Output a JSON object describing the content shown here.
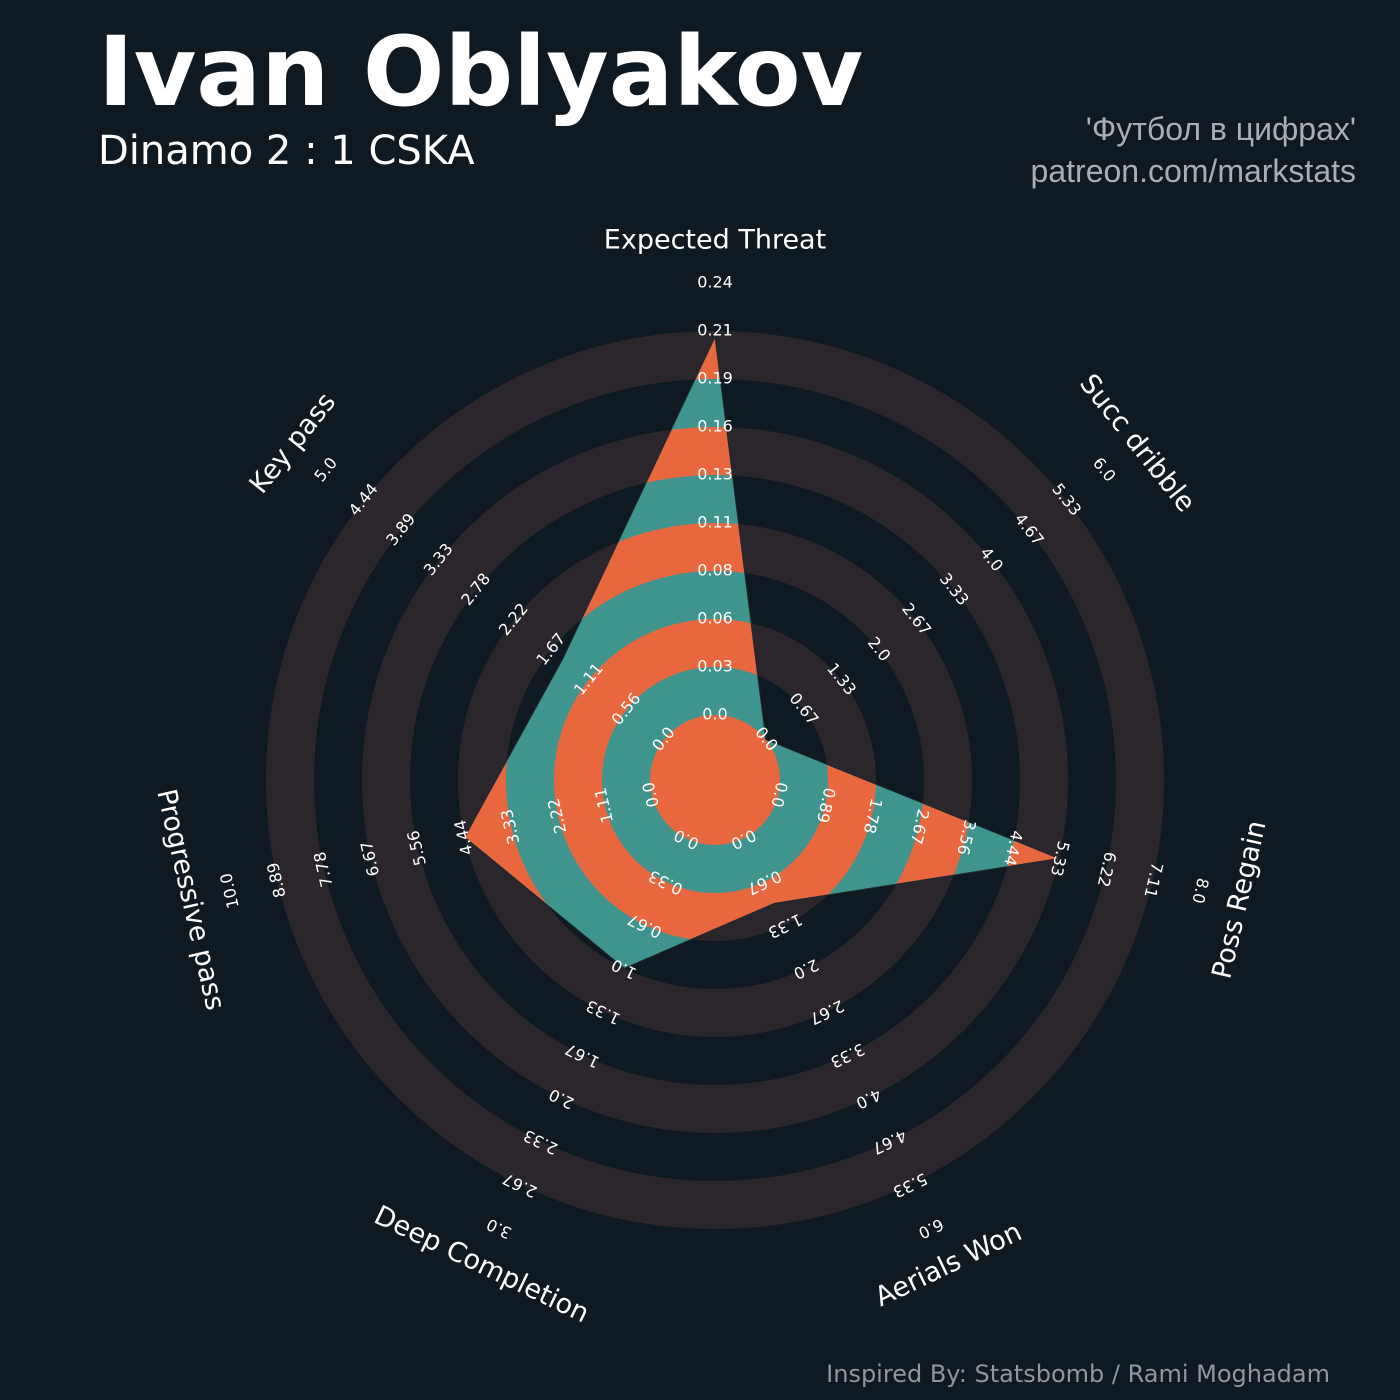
{
  "header": {
    "title": "Ivan Oblyakov",
    "subtitle": "Dinamo 2 : 1 CSKA",
    "credit_line1": "'Футбол в цифрах'",
    "credit_line2": "patreon.com/markstats"
  },
  "footer": {
    "text": "Inspired By: Statsbomb / Rami Moghadam"
  },
  "colors": {
    "background": "#0f1921",
    "ring": "#2a262b",
    "fill_a": "#e8673f",
    "fill_b": "#3f958e",
    "text": "#ffffff"
  },
  "chart_data": {
    "type": "radar",
    "title": "Ivan Oblyakov",
    "subtitle": "Dinamo 2 : 1 CSKA",
    "axes": [
      {
        "label": "Expected Threat",
        "min": 0.0,
        "max": 0.24,
        "value": 0.21,
        "ticks": [
          "0.0",
          "0.03",
          "0.06",
          "0.08",
          "0.11",
          "0.13",
          "0.16",
          "0.19",
          "0.21",
          "0.24"
        ]
      },
      {
        "label": "Succ dribble",
        "min": 0.0,
        "max": 6.0,
        "value": 0.0,
        "ticks": [
          "0.0",
          "0.67",
          "1.33",
          "2.0",
          "2.67",
          "3.33",
          "4.0",
          "4.67",
          "5.33",
          "6.0"
        ]
      },
      {
        "label": "Poss Regain",
        "min": 0.0,
        "max": 8.0,
        "value": 5.33,
        "ticks": [
          "0.0",
          "0.89",
          "1.78",
          "2.67",
          "3.56",
          "4.44",
          "5.33",
          "6.22",
          "7.11",
          "8.0"
        ]
      },
      {
        "label": "Aerials Won",
        "min": 0.0,
        "max": 6.0,
        "value": 1.0,
        "ticks": [
          "0.0",
          "0.67",
          "1.33",
          "2.0",
          "2.67",
          "3.33",
          "4.0",
          "4.67",
          "5.33",
          "6.0"
        ]
      },
      {
        "label": "Deep Completion",
        "min": 0.0,
        "max": 3.0,
        "value": 1.0,
        "ticks": [
          "0.0",
          "0.33",
          "0.67",
          "1.0",
          "1.33",
          "1.67",
          "2.0",
          "2.33",
          "2.67",
          "3.0"
        ]
      },
      {
        "label": "Progressive pass",
        "min": 0.0,
        "max": 10.0,
        "value": 4.44,
        "ticks": [
          "0.0",
          "1.11",
          "2.22",
          "3.33",
          "4.44",
          "5.56",
          "6.67",
          "7.78",
          "8.89",
          "10.0"
        ]
      },
      {
        "label": "Key pass",
        "min": 0.0,
        "max": 5.0,
        "value": 1.5,
        "ticks": [
          "0.0",
          "0.56",
          "1.11",
          "1.67",
          "2.22",
          "2.78",
          "3.33",
          "3.89",
          "4.44",
          "5.0"
        ]
      }
    ],
    "grid": true,
    "legend": "none"
  }
}
